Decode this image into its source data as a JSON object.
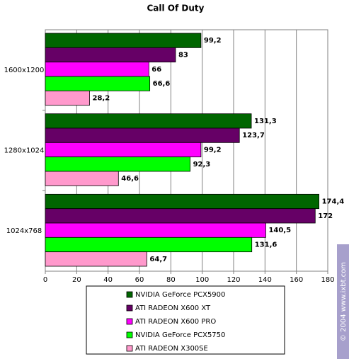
{
  "chart_data": {
    "type": "hbar",
    "title": "Call Of Duty",
    "categories": [
      "1600x1200",
      "1280x1024",
      "1024x768"
    ],
    "series": [
      {
        "name": "NVIDIA GeForce PCX5900",
        "color": "#006600",
        "values": [
          99.2,
          131.3,
          174.4
        ],
        "value_labels": [
          "99,2",
          "131,3",
          "174,4"
        ]
      },
      {
        "name": "ATI  RADEON X600 XT",
        "color": "#660066",
        "values": [
          83,
          123.7,
          172
        ],
        "value_labels": [
          "83",
          "123,7",
          "172"
        ]
      },
      {
        "name": "ATI RADEON X600 PRO",
        "color": "#ff00ff",
        "values": [
          66,
          99.2,
          140.5
        ],
        "value_labels": [
          "66",
          "99,2",
          "140,5"
        ]
      },
      {
        "name": "NVIDIA GeForce PCX5750",
        "color": "#00ff00",
        "values": [
          66.6,
          92.3,
          131.6
        ],
        "value_labels": [
          "66,6",
          "92,3",
          "131,6"
        ]
      },
      {
        "name": "ATI RADEON X300SE",
        "color": "#ff99cc",
        "values": [
          28.2,
          46.6,
          64.7
        ],
        "value_labels": [
          "28,2",
          "46,6",
          "64,7"
        ]
      }
    ],
    "xlim": [
      0,
      180
    ],
    "xticks": [
      0,
      20,
      40,
      60,
      80,
      100,
      120,
      140,
      160,
      180
    ],
    "grid": true,
    "watermark": "© 2004 www.ixbt.com"
  }
}
